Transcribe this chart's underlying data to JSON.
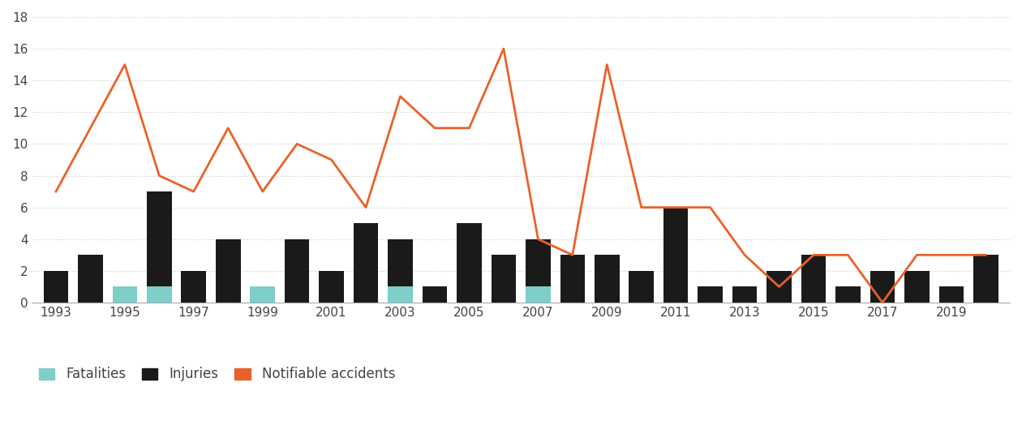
{
  "years": [
    1993,
    1994,
    1995,
    1996,
    1997,
    1998,
    1999,
    2000,
    2001,
    2002,
    2003,
    2004,
    2005,
    2006,
    2007,
    2008,
    2009,
    2010,
    2011,
    2012,
    2013,
    2014,
    2015,
    2016,
    2017,
    2018,
    2019,
    2020
  ],
  "injuries": [
    2,
    3,
    1,
    7,
    2,
    4,
    1,
    4,
    2,
    5,
    4,
    1,
    5,
    3,
    4,
    3,
    3,
    2,
    6,
    1,
    1,
    2,
    3,
    1,
    2,
    2,
    1,
    3
  ],
  "fatalities": [
    0,
    0,
    1,
    1,
    0,
    0,
    1,
    0,
    0,
    0,
    1,
    0,
    0,
    0,
    1,
    0,
    0,
    0,
    0,
    0,
    0,
    0,
    0,
    0,
    0,
    0,
    0,
    0
  ],
  "notifiable_years": [
    1993,
    1994,
    1995,
    1996,
    1997,
    1998,
    1999,
    2000,
    2001,
    2002,
    2003,
    2004,
    2005,
    2006,
    2007,
    2008,
    2009,
    2010,
    2011,
    2012,
    2013,
    2014,
    2015,
    2016,
    2017,
    2018,
    2019,
    2020
  ],
  "notifiable_values": [
    7,
    11,
    15,
    8,
    7,
    11,
    7,
    10,
    9,
    6,
    13,
    11,
    11,
    16,
    4,
    3,
    15,
    6,
    6,
    6,
    3,
    1,
    3,
    3,
    0,
    3,
    3,
    3
  ],
  "bar_color_injuries": "#1a1a1a",
  "bar_color_fatalities": "#7ececa",
  "line_color": "#e8622a",
  "background_color": "#ffffff",
  "grid_color": "#cccccc",
  "ylim": [
    0,
    18
  ],
  "yticks": [
    0,
    2,
    4,
    6,
    8,
    10,
    12,
    14,
    16,
    18
  ],
  "xtick_years": [
    1993,
    1995,
    1997,
    1999,
    2001,
    2003,
    2005,
    2007,
    2009,
    2011,
    2013,
    2015,
    2017,
    2019
  ],
  "legend_labels": [
    "Fatalities",
    "Injuries",
    "Notifiable accidents"
  ]
}
